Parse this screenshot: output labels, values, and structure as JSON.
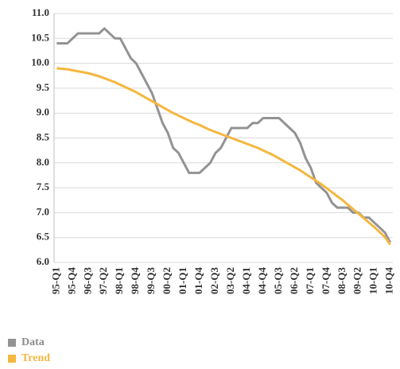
{
  "chart_data": {
    "type": "line",
    "categories": [
      "95-Q1",
      null,
      null,
      "95-Q4",
      null,
      null,
      "96-Q3",
      null,
      null,
      "97-Q2",
      null,
      null,
      "98-Q1",
      null,
      null,
      "98-Q4",
      null,
      null,
      "99-Q3",
      null,
      null,
      "00-Q2",
      null,
      null,
      "01-Q1",
      null,
      null,
      "01-Q4",
      null,
      null,
      "02-Q3",
      null,
      null,
      "03-Q2",
      null,
      null,
      "04-Q1",
      null,
      null,
      "04-Q4",
      null,
      null,
      "05-Q3",
      null,
      null,
      "06-Q2",
      null,
      null,
      "07-Q1",
      null,
      null,
      "07-Q4",
      null,
      null,
      "08-Q3",
      null,
      null,
      "09-Q2",
      null,
      null,
      "10-Q1",
      null,
      null,
      "10-Q4"
    ],
    "series": [
      {
        "name": "Data",
        "color": "#939393",
        "values": [
          10.4,
          10.4,
          10.4,
          10.5,
          10.6,
          10.6,
          10.6,
          10.6,
          10.6,
          10.7,
          10.6,
          10.5,
          10.5,
          10.3,
          10.1,
          10.0,
          9.8,
          9.6,
          9.4,
          9.1,
          8.8,
          8.6,
          8.3,
          8.2,
          8.0,
          7.8,
          7.8,
          7.8,
          7.9,
          8.0,
          8.2,
          8.3,
          8.5,
          8.7,
          8.7,
          8.7,
          8.7,
          8.8,
          8.8,
          8.9,
          8.9,
          8.9,
          8.9,
          8.8,
          8.7,
          8.6,
          8.4,
          8.1,
          7.9,
          7.6,
          7.5,
          7.4,
          7.2,
          7.1,
          7.1,
          7.1,
          7.0,
          7.0,
          6.9,
          6.9,
          6.8,
          6.7,
          6.6,
          6.4
        ]
      },
      {
        "name": "Trend",
        "color": "#f4b73f",
        "values": [
          9.9,
          9.89,
          9.88,
          9.86,
          9.84,
          9.82,
          9.8,
          9.77,
          9.74,
          9.7,
          9.66,
          9.62,
          9.57,
          9.52,
          9.47,
          9.42,
          9.36,
          9.3,
          9.24,
          9.18,
          9.12,
          9.06,
          9.0,
          8.95,
          8.9,
          8.85,
          8.8,
          8.76,
          8.71,
          8.66,
          8.62,
          8.58,
          8.54,
          8.5,
          8.46,
          8.42,
          8.38,
          8.34,
          8.3,
          8.25,
          8.2,
          8.15,
          8.09,
          8.03,
          7.97,
          7.91,
          7.85,
          7.78,
          7.71,
          7.64,
          7.57,
          7.49,
          7.41,
          7.33,
          7.25,
          7.16,
          7.07,
          6.98,
          6.89,
          6.8,
          6.71,
          6.61,
          6.51,
          6.36
        ]
      }
    ],
    "ylim": [
      6.0,
      11.0
    ],
    "yticks": [
      {
        "value": 6.0,
        "label": "6.0"
      },
      6.5,
      {
        "value": 7.0,
        "label": "7.0"
      },
      7.5,
      {
        "value": 8.0,
        "label": "8.0"
      },
      8.5,
      {
        "value": 9.0,
        "label": "9.0"
      },
      9.5,
      {
        "value": 10.0,
        "label": "10.0"
      },
      10.5,
      {
        "value": 11.0,
        "label": "11.0"
      }
    ],
    "grid": true,
    "vertical_line": "08-Q2",
    "legend": "bottom-left"
  }
}
